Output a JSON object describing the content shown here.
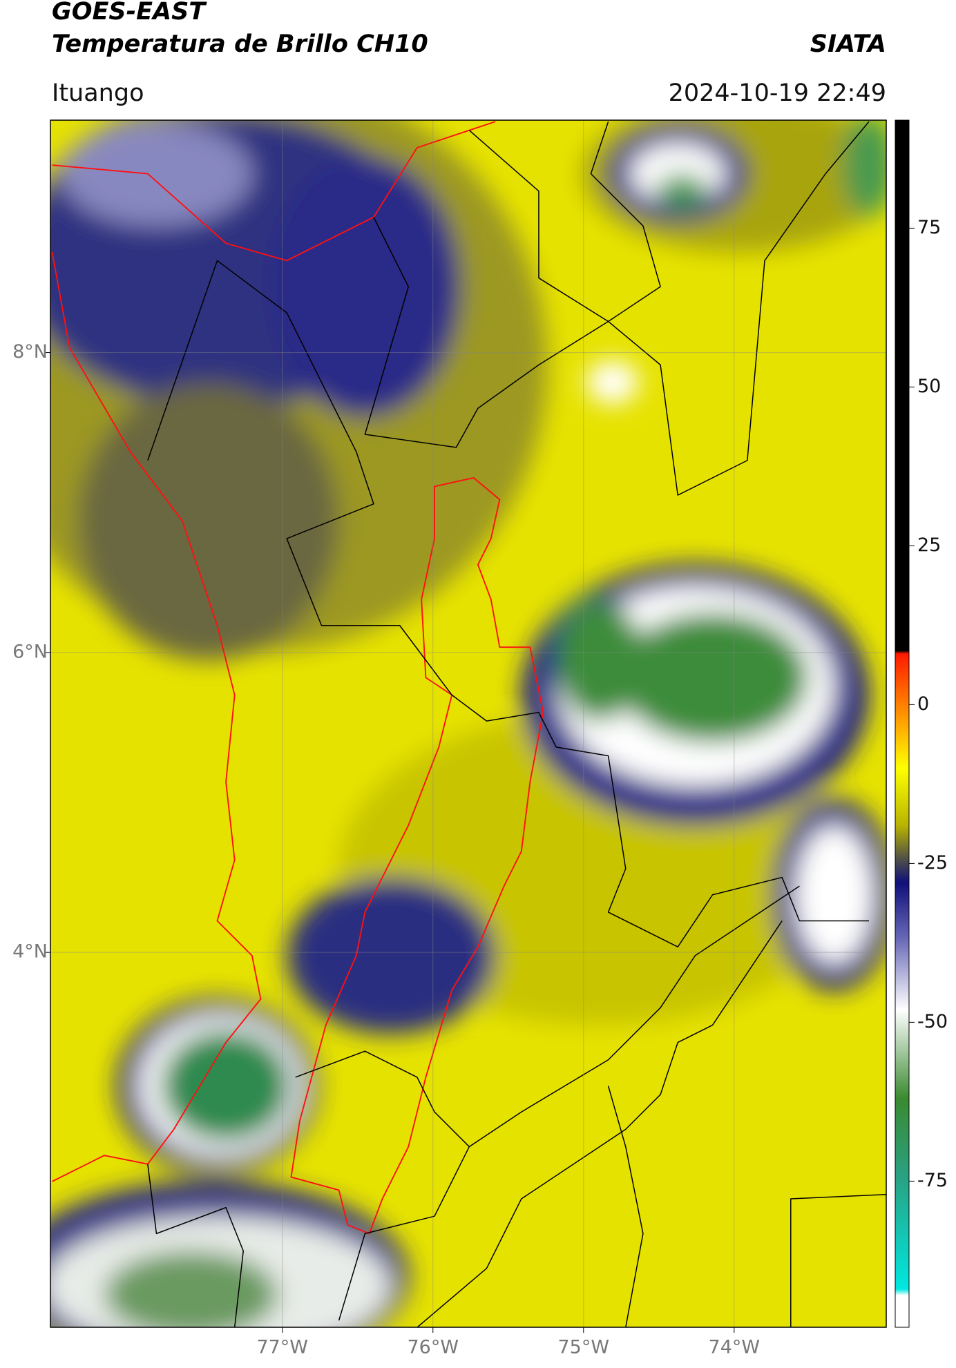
{
  "header": {
    "title": "GOES-EAST",
    "subtitle": "Temperatura de Brillo CH10",
    "brand": "SIATA",
    "location": "Ituango",
    "datetime": "2024-10-19 22:49"
  },
  "map": {
    "xlim": [
      -78.54,
      -72.99
    ],
    "ylim": [
      1.5,
      9.55
    ],
    "xticks": [
      {
        "value": -77,
        "label": "77°W"
      },
      {
        "value": -76,
        "label": "76°W"
      },
      {
        "value": -75,
        "label": "75°W"
      },
      {
        "value": -74,
        "label": "74°W"
      }
    ],
    "yticks": [
      {
        "value": 8,
        "label": "8°N"
      },
      {
        "value": 6,
        "label": "6°N"
      },
      {
        "value": 4,
        "label": "4°N"
      }
    ],
    "grid": true
  },
  "colorbar": {
    "clim": [
      -98,
      92
    ],
    "ticks": [
      75,
      50,
      25,
      0,
      -25,
      -50,
      -75
    ],
    "stops": [
      {
        "value": 92,
        "color": "#000000"
      },
      {
        "value": 8.5,
        "color": "#000000"
      },
      {
        "value": 8,
        "color": "#ff1a00"
      },
      {
        "value": -2,
        "color": "#ff9900"
      },
      {
        "value": -10,
        "color": "#ffff00"
      },
      {
        "value": -19,
        "color": "#b8b400"
      },
      {
        "value": -24,
        "color": "#555544"
      },
      {
        "value": -28,
        "color": "#10107a"
      },
      {
        "value": -37,
        "color": "#6a6ab8"
      },
      {
        "value": -48,
        "color": "#ffffff"
      },
      {
        "value": -62,
        "color": "#3a8a30"
      },
      {
        "value": -74,
        "color": "#2aa080"
      },
      {
        "value": -92,
        "color": "#00e8e0"
      },
      {
        "value": -93,
        "color": "#ffffff"
      },
      {
        "value": -98,
        "color": "#ffffff"
      }
    ]
  }
}
